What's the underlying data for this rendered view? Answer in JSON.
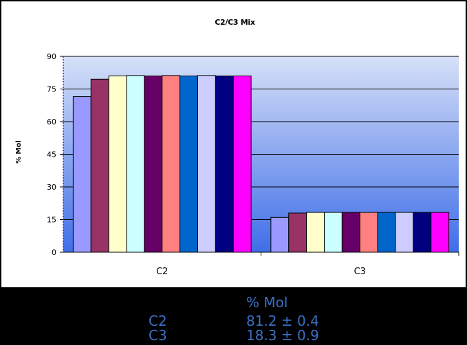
{
  "chart_data": {
    "type": "bar",
    "title": "C2/C3 Mix",
    "xlabel": "",
    "ylabel": "% Mol",
    "ylim": [
      0,
      90
    ],
    "yticks": [
      0,
      15,
      30,
      45,
      60,
      75,
      90
    ],
    "categories": [
      "C2",
      "C3"
    ],
    "series": [
      {
        "color": "#9999ff",
        "values": [
          71.5,
          16.0
        ]
      },
      {
        "color": "#993366",
        "values": [
          79.5,
          18.0
        ]
      },
      {
        "color": "#ffffcc",
        "values": [
          81.0,
          18.3
        ]
      },
      {
        "color": "#ccffff",
        "values": [
          81.2,
          18.3
        ]
      },
      {
        "color": "#660066",
        "values": [
          81.0,
          18.3
        ]
      },
      {
        "color": "#ff8080",
        "values": [
          81.2,
          18.3
        ]
      },
      {
        "color": "#0066cc",
        "values": [
          81.0,
          18.3
        ]
      },
      {
        "color": "#ccccff",
        "values": [
          81.2,
          18.3
        ]
      },
      {
        "color": "#000080",
        "values": [
          81.0,
          18.3
        ]
      },
      {
        "color": "#ff00ff",
        "values": [
          81.0,
          18.3
        ]
      }
    ],
    "grid": true,
    "legend": "none",
    "plot_background": [
      "#d6e0f7",
      "#3f6ee8"
    ]
  },
  "summary_table": {
    "header": "% Mol",
    "rows": [
      {
        "label": "C2",
        "value": "81.2 ± 0.4"
      },
      {
        "label": "C3",
        "value": "18.3 ± 0.9"
      }
    ]
  }
}
